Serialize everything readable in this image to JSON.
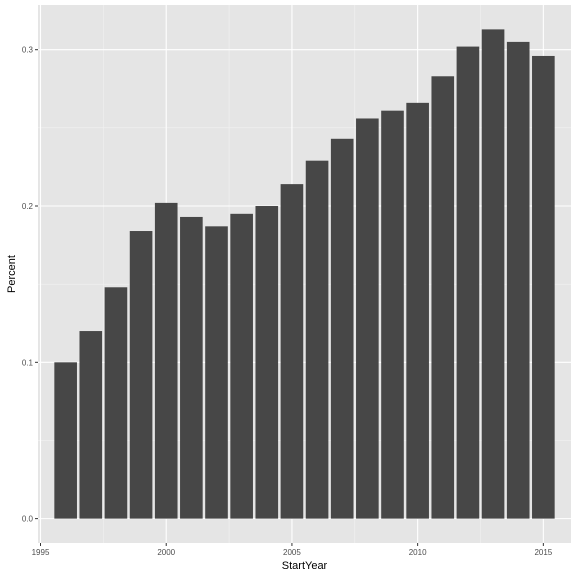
{
  "chart_data": {
    "type": "bar",
    "title": "",
    "xlabel": "StartYear",
    "ylabel": "Percent",
    "x": [
      1996,
      1997,
      1998,
      1999,
      2000,
      2001,
      2002,
      2003,
      2004,
      2005,
      2006,
      2007,
      2008,
      2009,
      2010,
      2011,
      2012,
      2013,
      2014,
      2015
    ],
    "values": [
      0.1,
      0.12,
      0.148,
      0.184,
      0.202,
      0.193,
      0.187,
      0.195,
      0.2,
      0.214,
      0.229,
      0.243,
      0.256,
      0.261,
      0.266,
      0.283,
      0.302,
      0.313,
      0.305,
      0.296
    ],
    "xlim": [
      1994.9,
      2016.1
    ],
    "ylim": [
      -0.0156,
      0.3286
    ],
    "x_ticks": [
      1995,
      2000,
      2005,
      2010,
      2015
    ],
    "x_tick_labels": [
      "1995",
      "2000",
      "2005",
      "2010",
      "2015"
    ],
    "y_ticks": [
      0.0,
      0.1,
      0.2,
      0.3
    ],
    "y_tick_labels": [
      "0.0",
      "0.1",
      "0.2",
      "0.3"
    ],
    "grid": true,
    "legend": "none",
    "colors": {
      "bar": "#474747",
      "panel_background": "#e5e5e5",
      "grid_major": "#ffffff",
      "grid_minor": "#f2f2f2",
      "tick_text": "#4d4d4d",
      "axis_title": "#000000"
    }
  }
}
